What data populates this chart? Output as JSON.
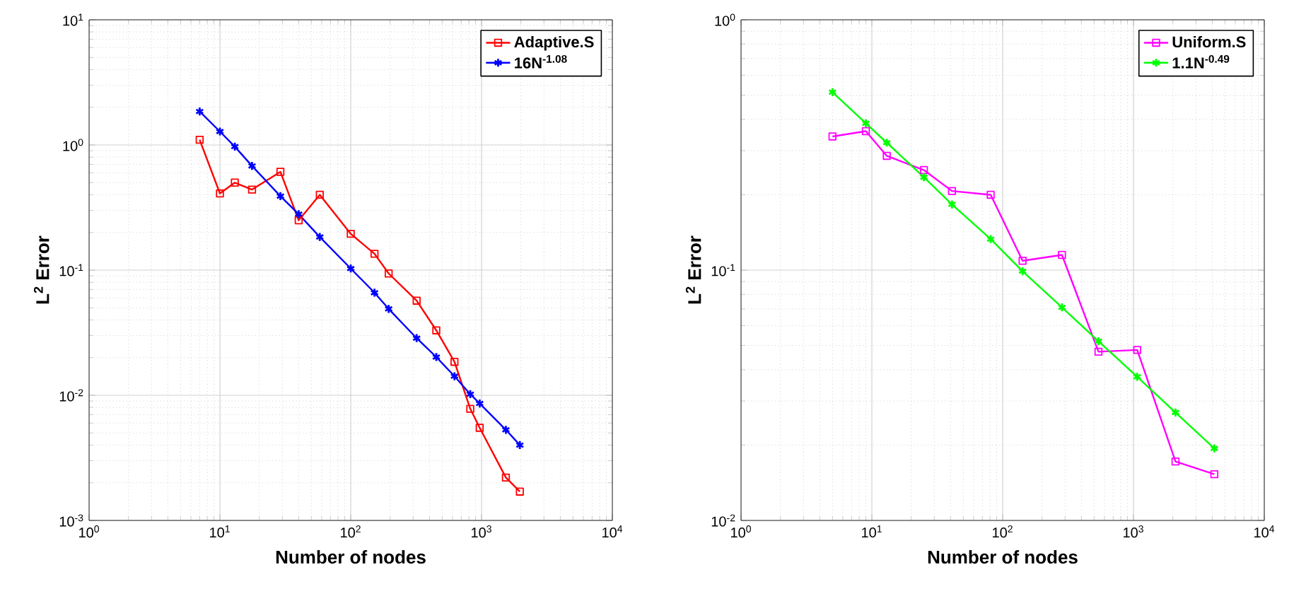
{
  "chart_data": [
    {
      "type": "line",
      "xlabel": "Number of nodes",
      "ylabel": "L$^{2}$ Error",
      "log": "xy",
      "grid": true,
      "legend": "top right",
      "xlim": [
        1,
        10000
      ],
      "ylim": [
        0.001,
        10
      ],
      "xticks": [
        {
          "value": 1,
          "label": "10$^{0}$"
        },
        {
          "value": 10,
          "label": "10$^{1}$"
        },
        {
          "value": 100,
          "label": "10$^{2}$"
        },
        {
          "value": 1000,
          "label": "10$^{3}$"
        },
        {
          "value": 10000,
          "label": "10$^{4}$"
        }
      ],
      "yticks": [
        {
          "value": 0.001,
          "label": "10$^{-3}$"
        },
        {
          "value": 0.01,
          "label": "10$^{-2}$"
        },
        {
          "value": 0.1,
          "label": "10$^{-1}$"
        },
        {
          "value": 1,
          "label": "10$^{0}$"
        },
        {
          "value": 10,
          "label": "10$^{1}$"
        }
      ],
      "series": [
        {
          "name": "Adaptive.S",
          "color": "#ff0000",
          "marker": "square",
          "x": [
            7,
            10,
            13,
            17.6,
            29,
            40,
            58,
            100,
            152,
            195,
            319,
            451,
            621,
            820,
            968,
            1535,
            1963
          ],
          "values": [
            1.1,
            0.41,
            0.5,
            0.44,
            0.61,
            0.25,
            0.4,
            0.195,
            0.135,
            0.094,
            0.057,
            0.033,
            0.0185,
            0.0078,
            0.0055,
            0.0022,
            0.0017
          ]
        },
        {
          "name": "16N$^{-1.08}$",
          "color": "#0000ff",
          "marker": "cross",
          "x": [
            7,
            10,
            13,
            17.6,
            29,
            40,
            58,
            100,
            152,
            195,
            319,
            451,
            621,
            820,
            968,
            1535,
            1963
          ],
          "values": [
            1.85,
            1.28,
            0.97,
            0.68,
            0.39,
            0.28,
            0.184,
            0.103,
            0.066,
            0.049,
            0.0286,
            0.0202,
            0.0142,
            0.0102,
            0.0086,
            0.0053,
            0.004
          ]
        }
      ]
    },
    {
      "type": "line",
      "xlabel": "Number of nodes",
      "ylabel": "L$^{2}$ Error",
      "log": "xy",
      "grid": true,
      "legend": "top right",
      "xlim": [
        1,
        10000
      ],
      "ylim": [
        0.01,
        1
      ],
      "xticks": [
        {
          "value": 1,
          "label": "10$^{0}$"
        },
        {
          "value": 10,
          "label": "10$^{1}$"
        },
        {
          "value": 100,
          "label": "10$^{2}$"
        },
        {
          "value": 1000,
          "label": "10$^{3}$"
        },
        {
          "value": 10000,
          "label": "10$^{4}$"
        }
      ],
      "yticks": [
        {
          "value": 0.01,
          "label": "10$^{-2}$"
        },
        {
          "value": 0.1,
          "label": "10$^{-1}$"
        },
        {
          "value": 1,
          "label": "10$^{0}$"
        }
      ],
      "series": [
        {
          "name": "Uniform.S",
          "color": "#ff00ff",
          "marker": "square",
          "x": [
            5,
            9,
            13,
            25,
            41,
            81,
            142,
            284,
            540,
            1068,
            2095,
            4150
          ],
          "values": [
            0.342,
            0.359,
            0.286,
            0.251,
            0.207,
            0.2,
            0.109,
            0.115,
            0.0472,
            0.048,
            0.0172,
            0.0153
          ]
        },
        {
          "name": "1.1N$^{-0.49}$",
          "color": "#00ff00",
          "marker": "cross",
          "x": [
            5,
            9,
            13,
            25,
            41,
            81,
            142,
            284,
            540,
            1068,
            2095,
            4150
          ],
          "values": [
            0.514,
            0.386,
            0.323,
            0.235,
            0.183,
            0.133,
            0.099,
            0.071,
            0.052,
            0.0375,
            0.027,
            0.0194
          ]
        }
      ]
    }
  ]
}
